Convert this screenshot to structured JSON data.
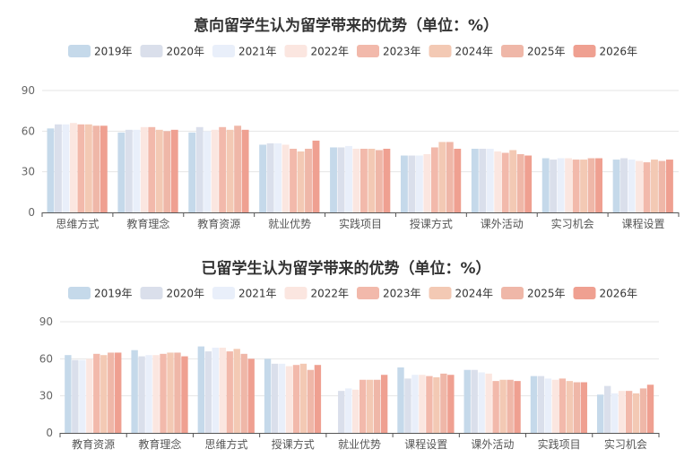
{
  "chart_data": [
    {
      "type": "bar",
      "title": "意向留学生认为留学带来的优势（单位：%）",
      "xlabel": "",
      "ylabel": "",
      "ylim": [
        0,
        90
      ],
      "yticks": [
        "0",
        "30",
        "60",
        "90"
      ],
      "grid": true,
      "legend_position": "top",
      "categories": [
        "思维方式",
        "教育理念",
        "教育资源",
        "就业优势",
        "实践项目",
        "授课方式",
        "课外活动",
        "实习机会",
        "课程设置"
      ],
      "series": [
        {
          "name": "2019年",
          "color": "#c5d9ea",
          "values": [
            62,
            59,
            59,
            50,
            48,
            42,
            47,
            40,
            39
          ]
        },
        {
          "name": "2020年",
          "color": "#dadfeb",
          "values": [
            65,
            61,
            63,
            51,
            48,
            42,
            47,
            39,
            40
          ]
        },
        {
          "name": "2021年",
          "color": "#e9effa",
          "values": [
            65,
            61,
            60,
            51,
            49,
            42,
            47,
            40,
            39
          ]
        },
        {
          "name": "2022年",
          "color": "#fbe6e0",
          "values": [
            66,
            63,
            61,
            50,
            47,
            43,
            45,
            40,
            38
          ]
        },
        {
          "name": "2023年",
          "color": "#f2b9ab",
          "values": [
            65,
            63,
            63,
            47,
            47,
            48,
            44,
            39,
            37
          ]
        },
        {
          "name": "2024年",
          "color": "#f3c9b4",
          "values": [
            65,
            61,
            61,
            45,
            47,
            52,
            46,
            39,
            39
          ]
        },
        {
          "name": "2025年",
          "color": "#efb7a8",
          "values": [
            64,
            60,
            64,
            47,
            46,
            52,
            43,
            40,
            38
          ]
        },
        {
          "name": "2026年",
          "color": "#efa091",
          "values": [
            64,
            61,
            61,
            53,
            47,
            47,
            42,
            40,
            39
          ]
        }
      ]
    },
    {
      "type": "bar",
      "title": "已留学生认为留学带来的优势（单位：%）",
      "xlabel": "",
      "ylabel": "",
      "ylim": [
        0,
        90
      ],
      "yticks": [
        "0",
        "30",
        "60",
        "90"
      ],
      "grid": true,
      "legend_position": "top",
      "categories": [
        "教育资源",
        "教育理念",
        "思维方式",
        "授课方式",
        "就业优势",
        "课程设置",
        "课外活动",
        "实践项目",
        "实习机会"
      ],
      "series": [
        {
          "name": "2019年",
          "color": "#c5d9ea",
          "values": [
            63,
            67,
            70,
            60,
            0,
            53,
            51,
            46,
            31
          ]
        },
        {
          "name": "2020年",
          "color": "#dadfeb",
          "values": [
            59,
            62,
            66,
            56,
            34,
            44,
            51,
            46,
            38
          ]
        },
        {
          "name": "2021年",
          "color": "#e9effa",
          "values": [
            59,
            63,
            69,
            56,
            36,
            47,
            49,
            44,
            32
          ]
        },
        {
          "name": "2022年",
          "color": "#fbe6e0",
          "values": [
            60,
            63,
            69,
            54,
            35,
            47,
            48,
            43,
            34
          ]
        },
        {
          "name": "2023年",
          "color": "#f2b9ab",
          "values": [
            64,
            64,
            66,
            55,
            43,
            46,
            42,
            44,
            34
          ]
        },
        {
          "name": "2024年",
          "color": "#f3c9b4",
          "values": [
            63,
            65,
            68,
            56,
            43,
            45,
            43,
            42,
            32
          ]
        },
        {
          "name": "2025年",
          "color": "#efb7a8",
          "values": [
            65,
            65,
            64,
            51,
            43,
            48,
            43,
            41,
            36
          ]
        },
        {
          "name": "2026年",
          "color": "#efa091",
          "values": [
            65,
            62,
            60,
            55,
            47,
            47,
            42,
            41,
            39
          ]
        }
      ]
    }
  ]
}
